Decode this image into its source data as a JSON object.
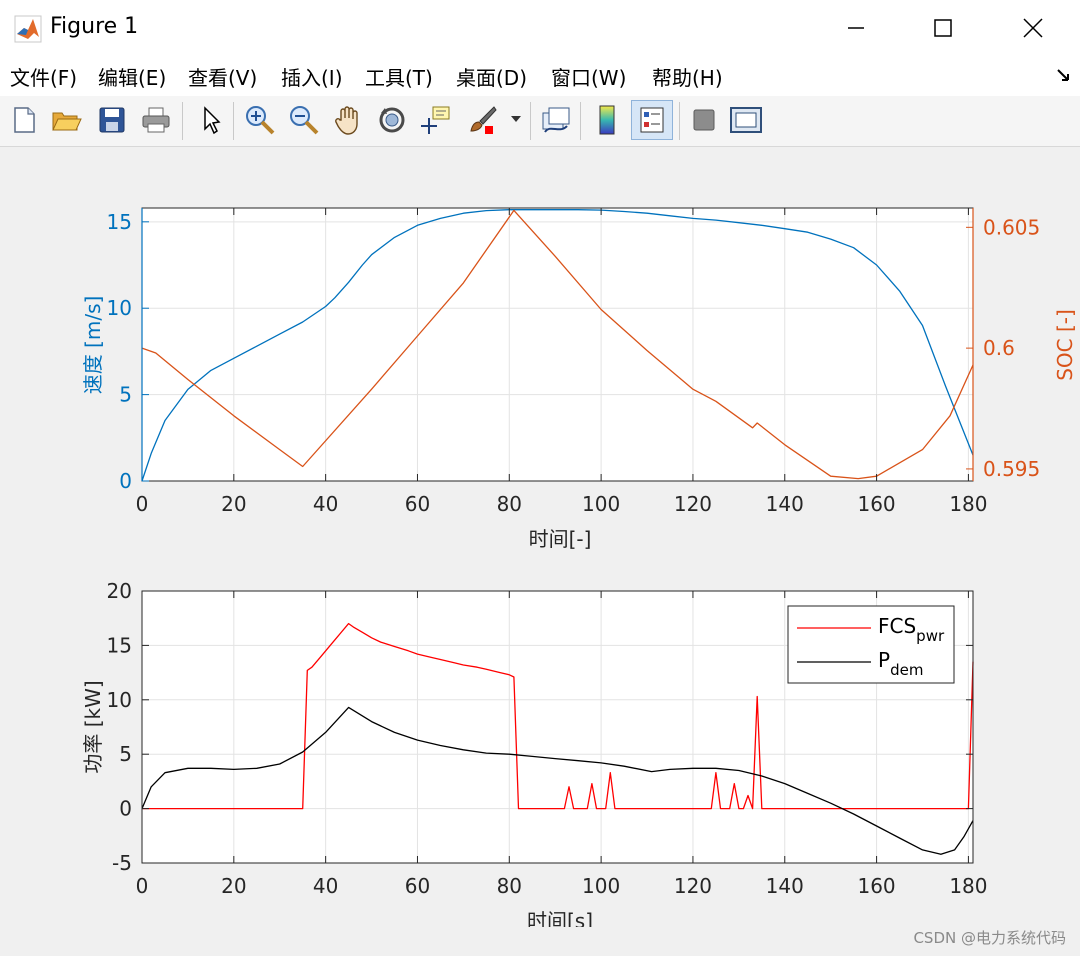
{
  "window": {
    "title": "Figure 1",
    "icon": "matlab-logo-icon",
    "controls": [
      "minimize-icon",
      "maximize-icon",
      "close-icon"
    ]
  },
  "menu": [
    {
      "label": "文件(F)"
    },
    {
      "label": "编辑(E)"
    },
    {
      "label": "查看(V)"
    },
    {
      "label": "插入(I)"
    },
    {
      "label": "工具(T)"
    },
    {
      "label": "桌面(D)"
    },
    {
      "label": "窗口(W)"
    },
    {
      "label": "帮助(H)"
    }
  ],
  "toolbar": {
    "icons": [
      "new-figure-icon",
      "open-file-icon",
      "save-icon",
      "print-icon",
      "edit-plot-arrow-icon",
      "zoom-in-icon",
      "zoom-out-icon",
      "pan-hand-icon",
      "rotate-3d-icon",
      "data-cursor-icon",
      "brush-icon",
      "link-plot-icon",
      "insert-colorbar-icon",
      "insert-legend-icon",
      "hide-plot-tools-icon",
      "show-plot-tools-icon"
    ],
    "active": "insert-legend-icon"
  },
  "watermark": "CSDN @电力系统代码",
  "colors": {
    "blue": "#0072BD",
    "orange": "#D95319",
    "red": "#ff0000",
    "black": "#000000",
    "grid": "#e3e3e3",
    "axis": "#262626"
  },
  "chart_data": [
    {
      "type": "line",
      "xlabel": "时间[-]",
      "ylabel_left": "速度 [m/s]",
      "ylabel_right": "SOC [-]",
      "xlim": [
        0,
        181
      ],
      "ylim_left": [
        0,
        15.8
      ],
      "ylim_right": [
        0.5945,
        0.6058
      ],
      "xticks": [
        0,
        20,
        40,
        60,
        80,
        100,
        120,
        140,
        160,
        180
      ],
      "yticks_left": [
        0,
        5,
        10,
        15
      ],
      "yticks_right": [
        0.595,
        0.6,
        0.605
      ],
      "ytick_labels_right": [
        "0.595",
        "0.6",
        "0.605"
      ],
      "grid": true,
      "series": [
        {
          "axis": "left",
          "color": "#0072BD",
          "x": [
            0,
            2,
            5,
            10,
            15,
            20,
            25,
            30,
            35,
            40,
            42,
            45,
            48,
            50,
            55,
            60,
            65,
            70,
            75,
            80,
            85,
            90,
            95,
            100,
            105,
            110,
            115,
            120,
            125,
            130,
            135,
            140,
            145,
            150,
            155,
            160,
            165,
            170,
            175,
            178,
            181
          ],
          "y": [
            0,
            1.6,
            3.5,
            5.3,
            6.4,
            7.1,
            7.8,
            8.5,
            9.2,
            10.1,
            10.6,
            11.5,
            12.5,
            13.1,
            14.1,
            14.8,
            15.2,
            15.5,
            15.65,
            15.7,
            15.7,
            15.7,
            15.7,
            15.68,
            15.6,
            15.5,
            15.35,
            15.2,
            15.1,
            14.95,
            14.8,
            14.6,
            14.4,
            14.0,
            13.5,
            12.5,
            11.0,
            9.0,
            5.5,
            3.5,
            1.5
          ]
        },
        {
          "axis": "right",
          "color": "#D95319",
          "x": [
            0,
            3,
            10,
            20,
            30,
            35,
            50,
            60,
            70,
            81,
            90,
            100,
            110,
            120,
            125,
            133,
            134,
            140,
            150,
            156,
            160,
            170,
            176,
            181
          ],
          "y": [
            0.6,
            0.5998,
            0.5987,
            0.5972,
            0.5958,
            0.5951,
            0.5983,
            0.6005,
            0.6027,
            0.6057,
            0.6038,
            0.6016,
            0.5999,
            0.5983,
            0.5978,
            0.5967,
            0.5969,
            0.596,
            0.5947,
            0.5946,
            0.5947,
            0.5958,
            0.5972,
            0.5993
          ]
        }
      ]
    },
    {
      "type": "line",
      "xlabel": "时间[s]",
      "ylabel": "功率 [kW]",
      "xlim": [
        0,
        181
      ],
      "ylim": [
        -5,
        20
      ],
      "xticks": [
        0,
        20,
        40,
        60,
        80,
        100,
        120,
        140,
        160,
        180
      ],
      "yticks": [
        -5,
        0,
        5,
        10,
        15,
        20
      ],
      "grid": true,
      "legend": {
        "placement": "top-right",
        "entries": [
          {
            "base": "FCS",
            "sub": "pwr",
            "color": "#ff0000"
          },
          {
            "base": "P",
            "sub": "dem",
            "color": "#000000"
          }
        ]
      },
      "series": [
        {
          "label": "FCS_pwr",
          "color": "#ff0000",
          "x": [
            0,
            35,
            36,
            37,
            39,
            41,
            43,
            45,
            46,
            48,
            50,
            52,
            55,
            58,
            60,
            63,
            65,
            68,
            70,
            73,
            75,
            78,
            80,
            81,
            82,
            92,
            93,
            94,
            97,
            98,
            99,
            101,
            102,
            103,
            124,
            125,
            126,
            128,
            129,
            130,
            131,
            132,
            133,
            134,
            135,
            180,
            181
          ],
          "y": [
            0,
            0,
            12.7,
            13.0,
            14.0,
            15.0,
            16.0,
            17.0,
            16.7,
            16.2,
            15.7,
            15.3,
            14.9,
            14.5,
            14.2,
            13.9,
            13.7,
            13.4,
            13.2,
            13.0,
            12.8,
            12.5,
            12.3,
            12.1,
            0,
            0,
            2.0,
            0,
            0,
            2.3,
            0,
            0,
            3.3,
            0,
            0,
            3.3,
            0,
            0,
            2.3,
            0,
            0,
            1.2,
            0,
            10.3,
            0,
            0,
            13.5
          ]
        },
        {
          "label": "P_dem",
          "color": "#000000",
          "x": [
            0,
            2,
            5,
            10,
            15,
            20,
            25,
            30,
            35,
            40,
            45,
            50,
            55,
            60,
            65,
            70,
            75,
            80,
            85,
            90,
            95,
            100,
            105,
            111,
            115,
            120,
            125,
            130,
            135,
            140,
            145,
            150,
            155,
            160,
            165,
            170,
            174,
            177,
            179,
            181
          ],
          "y": [
            0,
            2.0,
            3.3,
            3.7,
            3.7,
            3.6,
            3.7,
            4.1,
            5.2,
            7.0,
            9.3,
            8.0,
            7.0,
            6.3,
            5.8,
            5.4,
            5.1,
            5.0,
            4.8,
            4.6,
            4.4,
            4.2,
            3.9,
            3.4,
            3.6,
            3.7,
            3.7,
            3.5,
            3.0,
            2.3,
            1.4,
            0.5,
            -0.5,
            -1.6,
            -2.7,
            -3.8,
            -4.2,
            -3.8,
            -2.6,
            -1.1
          ]
        }
      ]
    }
  ]
}
